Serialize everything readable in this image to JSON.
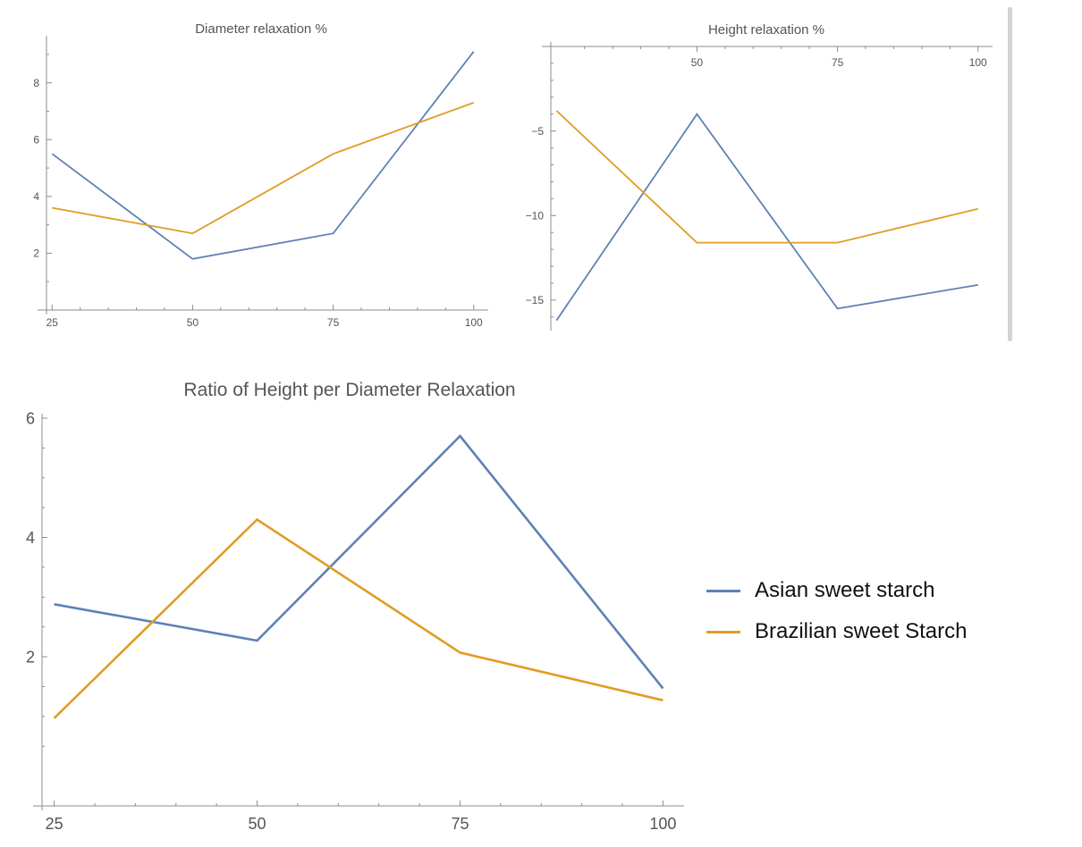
{
  "colors": {
    "series1": "#5e81b5",
    "series2": "#e19c24",
    "axis": "#8c8c8c",
    "text": "#555555"
  },
  "legend": [
    {
      "label": "Asian sweet starch",
      "color": "#5e81b5"
    },
    {
      "label": "Brazilian sweet Starch",
      "color": "#e19c24"
    }
  ],
  "chart_data": [
    {
      "type": "line",
      "title": "Diameter relaxation %",
      "x": [
        25,
        50,
        75,
        100
      ],
      "series": [
        {
          "values": [
            5.5,
            1.8,
            2.7,
            9.1
          ]
        },
        {
          "values": [
            3.6,
            2.7,
            5.5,
            7.3
          ]
        }
      ],
      "xlim": [
        24,
        101
      ],
      "ylim": [
        0,
        9.5
      ],
      "xticks": [
        "25",
        "50",
        "75",
        "100"
      ],
      "yticks": [
        "2",
        "4",
        "6",
        "8"
      ],
      "grid": false
    },
    {
      "type": "line",
      "title": "Height relaxation %",
      "x": [
        25,
        50,
        75,
        100
      ],
      "series": [
        {
          "values": [
            -16.2,
            -4.0,
            -15.5,
            -14.1
          ]
        },
        {
          "values": [
            -3.8,
            -11.6,
            -11.6,
            -9.6
          ]
        }
      ],
      "xlim": [
        24,
        101
      ],
      "ylim": [
        -16.8,
        0
      ],
      "xticks": [
        "50",
        "75",
        "100"
      ],
      "yticks": [
        "−5",
        "−10",
        "−15"
      ],
      "grid": false
    },
    {
      "type": "line",
      "title": "Ratio of Height per Diameter Relaxation",
      "x": [
        25,
        50,
        75,
        100
      ],
      "series": [
        {
          "name": "Asian sweet starch",
          "values": [
            2.88,
            2.27,
            5.7,
            1.47
          ]
        },
        {
          "name": "Brazilian sweet Starch",
          "values": [
            0.97,
            4.3,
            2.07,
            1.27
          ]
        }
      ],
      "xlim": [
        23.5,
        101.5
      ],
      "ylim": [
        -0.5,
        6
      ],
      "xticks": [
        "25",
        "50",
        "75",
        "100"
      ],
      "yticks": [
        "2",
        "4",
        "6"
      ],
      "grid": false,
      "legend_position": "right"
    }
  ]
}
